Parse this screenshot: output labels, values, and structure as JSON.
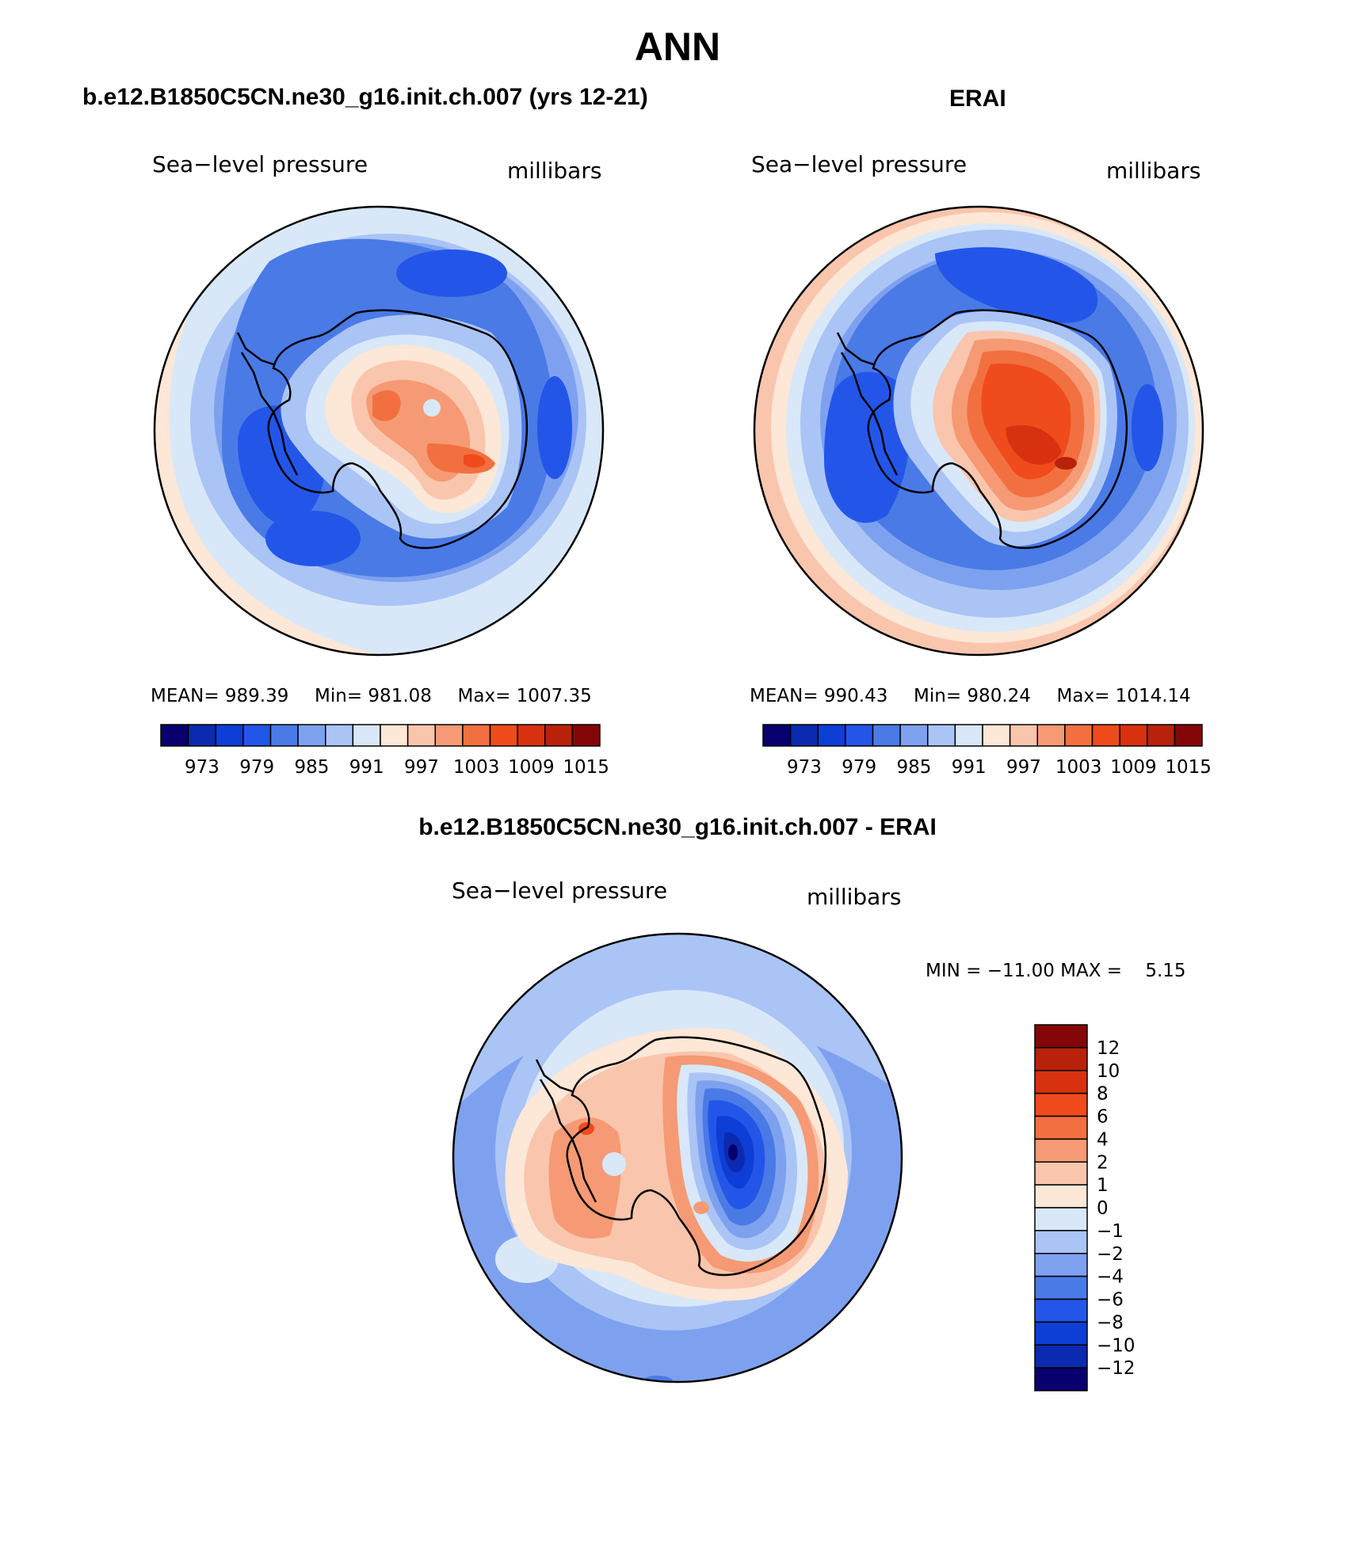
{
  "page": {
    "title": "ANN"
  },
  "chart_data": [
    {
      "type": "heatmap",
      "title": "b.e12.B1850C5CN.ne30_g16.init.ch.007 (yrs 12-21)",
      "variable": "Sea−level pressure",
      "units": "millibars",
      "stats": {
        "mean": "989.39",
        "min": "981.08",
        "max": "1007.35"
      },
      "stats_labels": {
        "mean": "MEAN=",
        "min": "Min=",
        "max": "Max="
      },
      "colorbar": {
        "orientation": "horizontal",
        "tick_labels": [
          "973",
          "979",
          "985",
          "991",
          "997",
          "1003",
          "1009",
          "1015"
        ],
        "colors": [
          "#08006e",
          "#0b2ab0",
          "#0d3ed6",
          "#2356e8",
          "#4a7ae6",
          "#7ea1ef",
          "#aac4f5",
          "#d8e8f8",
          "#fde7d7",
          "#fac5ad",
          "#f59a74",
          "#f2703f",
          "#ef4b1c",
          "#d83110",
          "#b8220a",
          "#850608"
        ]
      }
    },
    {
      "type": "heatmap",
      "title": "ERAI",
      "variable": "Sea−level pressure",
      "units": "millibars",
      "stats": {
        "mean": "990.43",
        "min": "980.24",
        "max": "1014.14"
      },
      "stats_labels": {
        "mean": "MEAN=",
        "min": "Min=",
        "max": "Max="
      },
      "colorbar": {
        "orientation": "horizontal",
        "tick_labels": [
          "973",
          "979",
          "985",
          "991",
          "997",
          "1003",
          "1009",
          "1015"
        ],
        "colors": [
          "#08006e",
          "#0b2ab0",
          "#0d3ed6",
          "#2356e8",
          "#4a7ae6",
          "#7ea1ef",
          "#aac4f5",
          "#d8e8f8",
          "#fde7d7",
          "#fac5ad",
          "#f59a74",
          "#f2703f",
          "#ef4b1c",
          "#d83110",
          "#b8220a",
          "#850608"
        ]
      }
    },
    {
      "type": "heatmap",
      "title": "b.e12.B1850C5CN.ne30_g16.init.ch.007 - ERAI",
      "variable": "Sea−level pressure",
      "units": "millibars",
      "minmax_text": "MIN = −11.00 MAX =    5.15",
      "colorbar": {
        "orientation": "vertical",
        "tick_labels": [
          "12",
          "10",
          "8",
          "6",
          "4",
          "2",
          "1",
          "0",
          "−1",
          "−2",
          "−4",
          "−6",
          "−8",
          "−10",
          "−12"
        ],
        "colors": [
          "#850608",
          "#b8220a",
          "#d83110",
          "#ef4b1c",
          "#f2703f",
          "#f59a74",
          "#fac5ad",
          "#fde7d7",
          "#d8e8f8",
          "#aac4f5",
          "#7ea1ef",
          "#4a7ae6",
          "#2356e8",
          "#0d3ed6",
          "#0b2ab0",
          "#08006e"
        ]
      }
    }
  ]
}
